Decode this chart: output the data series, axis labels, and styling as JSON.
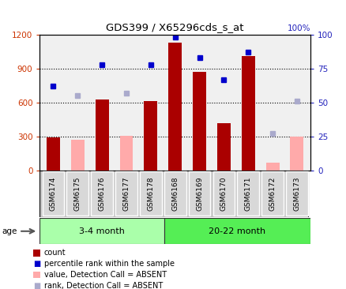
{
  "title": "GDS399 / X65296cds_s_at",
  "samples": [
    "GSM6174",
    "GSM6175",
    "GSM6176",
    "GSM6177",
    "GSM6178",
    "GSM6168",
    "GSM6169",
    "GSM6170",
    "GSM6171",
    "GSM6172",
    "GSM6173"
  ],
  "count_present": [
    290,
    null,
    630,
    null,
    615,
    1130,
    870,
    420,
    1010,
    null,
    null
  ],
  "count_absent": [
    null,
    270,
    null,
    310,
    null,
    null,
    null,
    null,
    null,
    70,
    300
  ],
  "rank_present": [
    62,
    null,
    78,
    null,
    78,
    98,
    83,
    67,
    87,
    null,
    null
  ],
  "rank_absent": [
    null,
    55,
    null,
    57,
    null,
    null,
    null,
    null,
    null,
    27,
    51
  ],
  "groups": [
    {
      "label": "3-4 month",
      "start": 0,
      "end": 5,
      "color": "#aaffaa"
    },
    {
      "label": "20-22 month",
      "start": 5,
      "end": 11,
      "color": "#55ee55"
    }
  ],
  "ylim_left": [
    0,
    1200
  ],
  "ylim_right": [
    0,
    100
  ],
  "yticks_left": [
    0,
    300,
    600,
    900,
    1200
  ],
  "yticks_right": [
    0,
    25,
    50,
    75,
    100
  ],
  "bar_color_present": "#aa0000",
  "bar_color_absent": "#ffaaaa",
  "dot_color_present": "#0000cc",
  "dot_color_absent": "#aaaacc",
  "plot_bg": "#f0f0f0",
  "cell_bg": "#d0d0d0",
  "grid_color": "black",
  "age_label": "age",
  "legend": [
    {
      "color": "#aa0000",
      "type": "bar",
      "label": "count"
    },
    {
      "color": "#0000cc",
      "type": "dot",
      "label": "percentile rank within the sample"
    },
    {
      "color": "#ffaaaa",
      "type": "bar",
      "label": "value, Detection Call = ABSENT"
    },
    {
      "color": "#aaaacc",
      "type": "dot",
      "label": "rank, Detection Call = ABSENT"
    }
  ]
}
